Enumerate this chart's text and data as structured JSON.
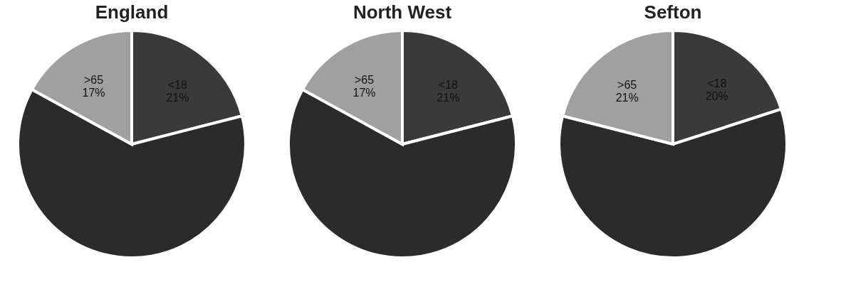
{
  "chart_data": [
    {
      "type": "pie",
      "title": "England",
      "categories": [
        "<18",
        null,
        ">65"
      ],
      "values": [
        21,
        62,
        17
      ],
      "colors": [
        "#3a3a3a",
        "#2b2b2b",
        "#a0a0a0"
      ],
      "value_labels": [
        "21%",
        null,
        "17%"
      ]
    },
    {
      "type": "pie",
      "title": "North West",
      "categories": [
        "<18",
        null,
        ">65"
      ],
      "values": [
        21,
        62,
        17
      ],
      "colors": [
        "#3a3a3a",
        "#2b2b2b",
        "#a0a0a0"
      ],
      "value_labels": [
        "21%",
        null,
        "17%"
      ]
    },
    {
      "type": "pie",
      "title": "Sefton",
      "categories": [
        "<18",
        null,
        ">65"
      ],
      "values": [
        20,
        59,
        21
      ],
      "colors": [
        "#3a3a3a",
        "#2b2b2b",
        "#a0a0a0"
      ],
      "value_labels": [
        "20%",
        null,
        "21%"
      ]
    }
  ]
}
